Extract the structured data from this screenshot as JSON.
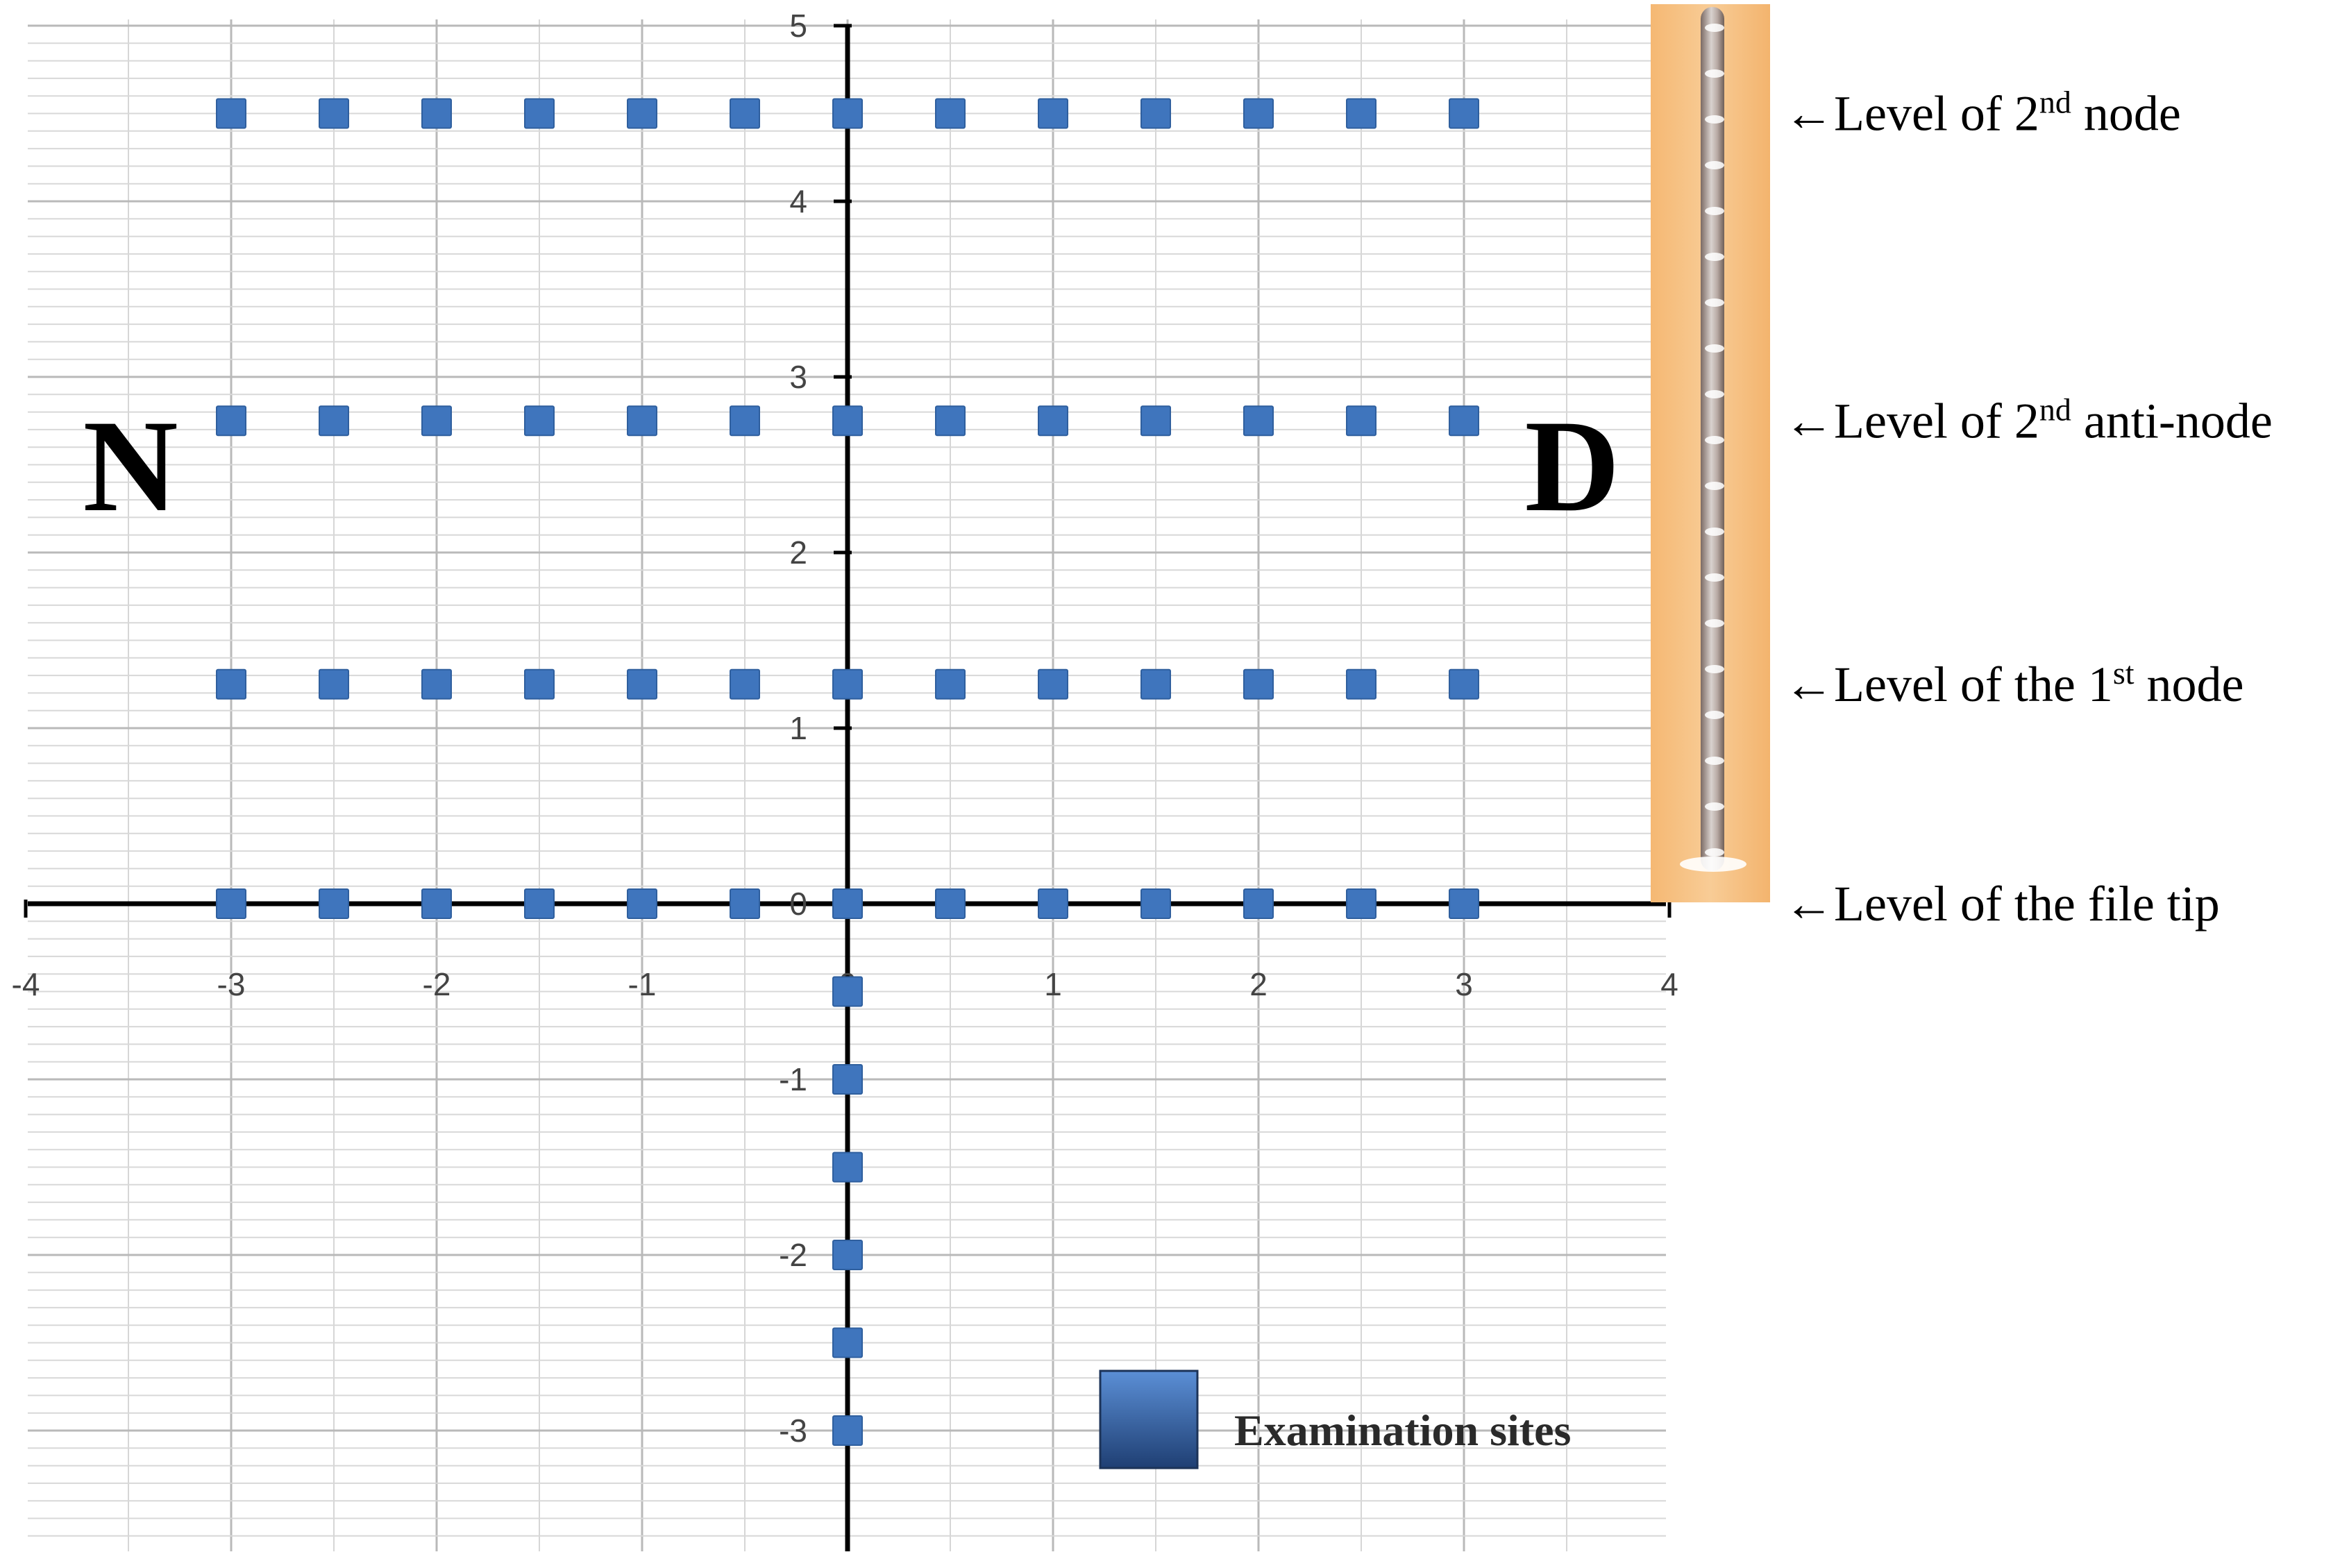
{
  "chart_data": {
    "type": "scatter",
    "xlim": [
      -4,
      4
    ],
    "ylim": [
      -3.7,
      5
    ],
    "x_ticks": [
      -4,
      -3,
      -2,
      -1,
      0,
      1,
      2,
      3,
      4
    ],
    "y_ticks": [
      -3,
      -2,
      -1,
      0,
      1,
      2,
      3,
      4,
      5
    ],
    "x_tick_labels": [
      "-4",
      "-3",
      "-2",
      "-1",
      "0",
      "1",
      "2",
      "3",
      "4"
    ],
    "y_tick_labels": [
      "-3",
      "-2",
      "-1",
      "0",
      "1",
      "2",
      "3",
      "4",
      "5"
    ],
    "grid": true,
    "legend_position": "bottom-right",
    "series": [
      {
        "name": "Examination sites",
        "color": "#3f75bd",
        "points": [
          {
            "x": -3,
            "y": 4.5
          },
          {
            "x": -2.5,
            "y": 4.5
          },
          {
            "x": -2,
            "y": 4.5
          },
          {
            "x": -1.5,
            "y": 4.5
          },
          {
            "x": -1,
            "y": 4.5
          },
          {
            "x": -0.5,
            "y": 4.5
          },
          {
            "x": 0,
            "y": 4.5
          },
          {
            "x": 0.5,
            "y": 4.5
          },
          {
            "x": 1,
            "y": 4.5
          },
          {
            "x": 1.5,
            "y": 4.5
          },
          {
            "x": 2,
            "y": 4.5
          },
          {
            "x": 2.5,
            "y": 4.5
          },
          {
            "x": 3,
            "y": 4.5
          },
          {
            "x": -3,
            "y": 2.75
          },
          {
            "x": -2.5,
            "y": 2.75
          },
          {
            "x": -2,
            "y": 2.75
          },
          {
            "x": -1.5,
            "y": 2.75
          },
          {
            "x": -1,
            "y": 2.75
          },
          {
            "x": -0.5,
            "y": 2.75
          },
          {
            "x": 0,
            "y": 2.75
          },
          {
            "x": 0.5,
            "y": 2.75
          },
          {
            "x": 1,
            "y": 2.75
          },
          {
            "x": 1.5,
            "y": 2.75
          },
          {
            "x": 2,
            "y": 2.75
          },
          {
            "x": 2.5,
            "y": 2.75
          },
          {
            "x": 3,
            "y": 2.75
          },
          {
            "x": -3,
            "y": 1.25
          },
          {
            "x": -2.5,
            "y": 1.25
          },
          {
            "x": -2,
            "y": 1.25
          },
          {
            "x": -1.5,
            "y": 1.25
          },
          {
            "x": -1,
            "y": 1.25
          },
          {
            "x": -0.5,
            "y": 1.25
          },
          {
            "x": 0,
            "y": 1.25
          },
          {
            "x": 0.5,
            "y": 1.25
          },
          {
            "x": 1,
            "y": 1.25
          },
          {
            "x": 1.5,
            "y": 1.25
          },
          {
            "x": 2,
            "y": 1.25
          },
          {
            "x": 2.5,
            "y": 1.25
          },
          {
            "x": 3,
            "y": 1.25
          },
          {
            "x": -3,
            "y": 0
          },
          {
            "x": -2.5,
            "y": 0
          },
          {
            "x": -2,
            "y": 0
          },
          {
            "x": -1.5,
            "y": 0
          },
          {
            "x": -1,
            "y": 0
          },
          {
            "x": -0.5,
            "y": 0
          },
          {
            "x": 0,
            "y": 0
          },
          {
            "x": 0.5,
            "y": 0
          },
          {
            "x": 1,
            "y": 0
          },
          {
            "x": 1.5,
            "y": 0
          },
          {
            "x": 2,
            "y": 0
          },
          {
            "x": 2.5,
            "y": 0
          },
          {
            "x": 3,
            "y": 0
          },
          {
            "x": 0,
            "y": -0.5
          },
          {
            "x": 0,
            "y": -1
          },
          {
            "x": 0,
            "y": -1.5
          },
          {
            "x": 0,
            "y": -2
          },
          {
            "x": 0,
            "y": -2.5
          },
          {
            "x": 0,
            "y": -3
          }
        ]
      }
    ],
    "side_labels": {
      "left": "N",
      "right": "D"
    },
    "annotations": [
      {
        "y": 4.5,
        "prefix": "Level of 2",
        "sup": "nd",
        "suffix": " node"
      },
      {
        "y": 2.75,
        "prefix": "Level of 2",
        "sup": "nd",
        "suffix": " anti-node"
      },
      {
        "y": 1.25,
        "prefix": "Level of the 1",
        "sup": "st",
        "suffix": " node"
      },
      {
        "y": 0,
        "prefix": "Level of the file tip",
        "sup": "",
        "suffix": ""
      }
    ],
    "arrow_glyph": "←",
    "legend_label": "Examination sites"
  }
}
